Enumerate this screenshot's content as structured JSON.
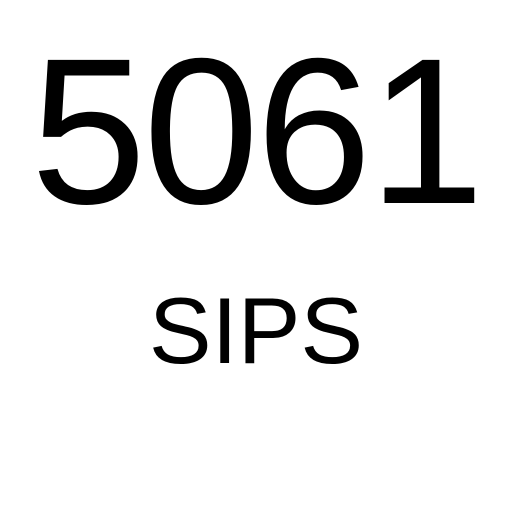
{
  "port": {
    "number": "5061",
    "protocol": "SIPS"
  },
  "colors": {
    "background": "#ffffff",
    "text": "#000000"
  }
}
